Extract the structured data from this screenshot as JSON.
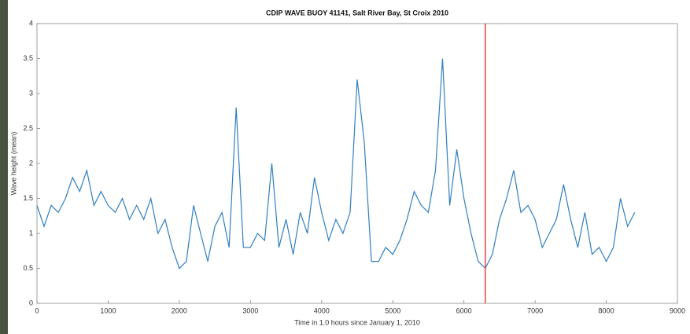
{
  "chart_data": {
    "type": "line",
    "title": "CDIP WAVE BUOY 41141, Salt River Bay, St Croix 2010",
    "xlabel": "Time in 1.0 hours since January 1, 2010",
    "ylabel": "Wave height (mean)",
    "x": [
      0,
      100,
      200,
      300,
      400,
      500,
      600,
      700,
      800,
      900,
      1000,
      1100,
      1200,
      1300,
      1400,
      1500,
      1600,
      1700,
      1800,
      1900,
      2000,
      2100,
      2200,
      2300,
      2400,
      2500,
      2600,
      2700,
      2800,
      2900,
      3000,
      3100,
      3200,
      3300,
      3400,
      3500,
      3600,
      3700,
      3800,
      3900,
      4000,
      4100,
      4200,
      4300,
      4400,
      4500,
      4600,
      4700,
      4800,
      4900,
      5000,
      5100,
      5200,
      5300,
      5400,
      5500,
      5600,
      5700,
      5800,
      5900,
      6000,
      6100,
      6200,
      6300,
      6400,
      6500,
      6600,
      6700,
      6800,
      6900,
      7000,
      7100,
      7200,
      7300,
      7400,
      7500,
      7600,
      7700,
      7800,
      7900,
      8000,
      8100,
      8200,
      8300,
      8400
    ],
    "series": [
      {
        "name": "Wave height",
        "color": "#2f7fc1",
        "values": [
          1.4,
          1.1,
          1.4,
          1.3,
          1.5,
          1.8,
          1.6,
          1.9,
          1.4,
          1.6,
          1.4,
          1.3,
          1.5,
          1.2,
          1.4,
          1.2,
          1.5,
          1.0,
          1.2,
          0.8,
          0.5,
          0.6,
          1.4,
          1.0,
          0.6,
          1.1,
          1.3,
          0.8,
          2.8,
          0.8,
          0.8,
          1.0,
          0.9,
          2.0,
          0.8,
          1.2,
          0.7,
          1.3,
          1.0,
          1.8,
          1.3,
          0.9,
          1.2,
          1.0,
          1.3,
          3.2,
          2.3,
          0.6,
          0.6,
          0.8,
          0.7,
          0.9,
          1.2,
          1.6,
          1.4,
          1.3,
          1.9,
          3.5,
          1.4,
          2.2,
          1.5,
          1.0,
          0.6,
          0.5,
          0.7,
          1.2,
          1.5,
          1.9,
          1.3,
          1.4,
          1.2,
          0.8,
          1.0,
          1.2,
          1.7,
          1.2,
          0.8,
          1.3,
          0.7,
          0.8,
          0.6,
          0.8,
          1.5,
          1.1,
          1.3
        ]
      }
    ],
    "vline": {
      "value": 6300,
      "color": "#e8434a"
    },
    "xlim": [
      0,
      9000
    ],
    "xticks": [
      0,
      1000,
      2000,
      3000,
      4000,
      5000,
      6000,
      7000,
      8000,
      9000
    ],
    "ylim": [
      0,
      4
    ],
    "yticks": [
      0,
      0.5,
      1,
      1.5,
      2,
      2.5,
      3,
      3.5,
      4
    ]
  }
}
